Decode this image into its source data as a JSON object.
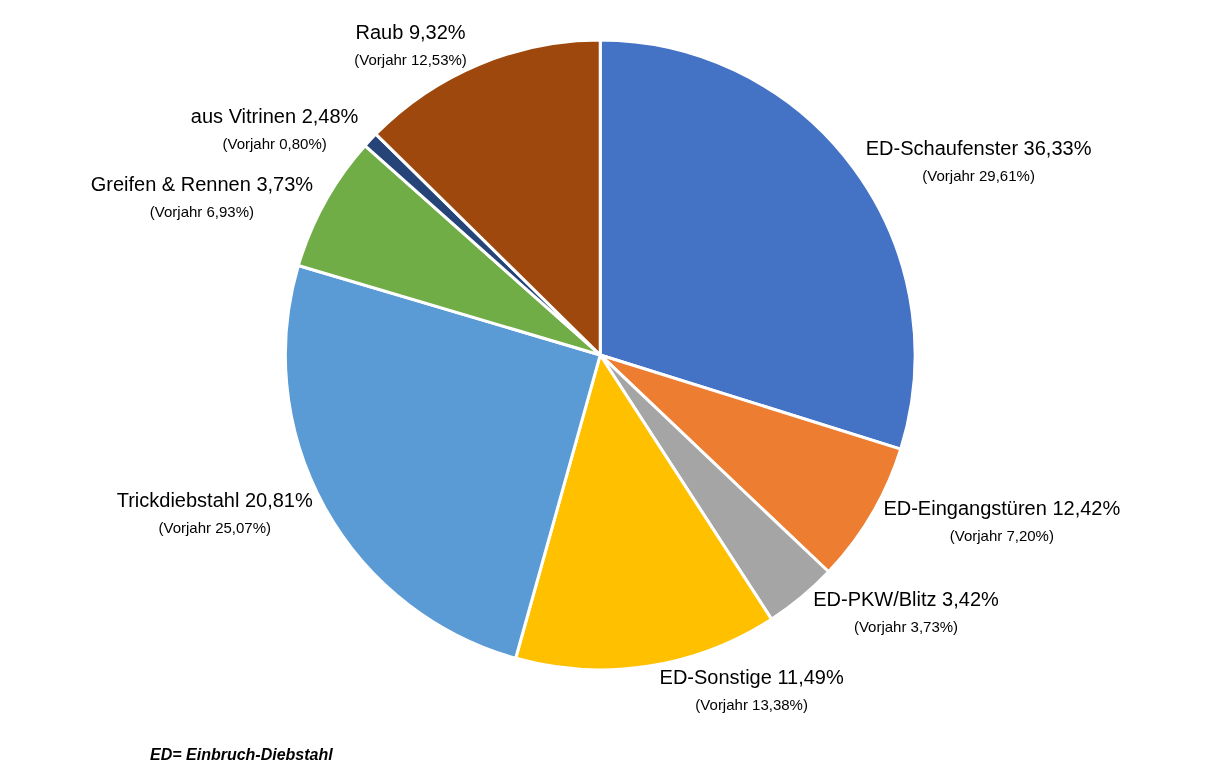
{
  "chart_data": {
    "type": "pie",
    "categories": [
      "ED-Schaufenster",
      "ED-Eingangstüren",
      "ED-PKW/Blitz",
      "ED-Sonstige",
      "Trickdiebstahl",
      "Greifen & Rennen",
      "aus Vitrinen",
      "Raub"
    ],
    "values": [
      29.61,
      7.2,
      3.73,
      13.38,
      25.07,
      6.93,
      0.8,
      12.53
    ],
    "value_labels": [
      "36,33%\n(Vorjahr 29,61%)",
      "12,42%\n(Vorjahr 7,20%)",
      "3,42%\n(Vorjahr 3,73%)",
      "11,49%\n(Vorjahr 13,38%)",
      "20,81%\n(Vorjahr 25,07%)",
      "3,73%\n(Vorjahr 6,93%)",
      "2,48%\n(Vorjahr 0,80%)",
      "9,32%\n(Vorjahr 12,53%)"
    ],
    "colors": [
      "#4472c4",
      "#ed7d31",
      "#a5a5a5",
      "#ffc000",
      "#5b9bd5",
      "#70ad47",
      "#264478",
      "#9e480e"
    ],
    "annotations": [
      "ED= Einbruch-Diebstahl"
    ],
    "legend": false
  }
}
